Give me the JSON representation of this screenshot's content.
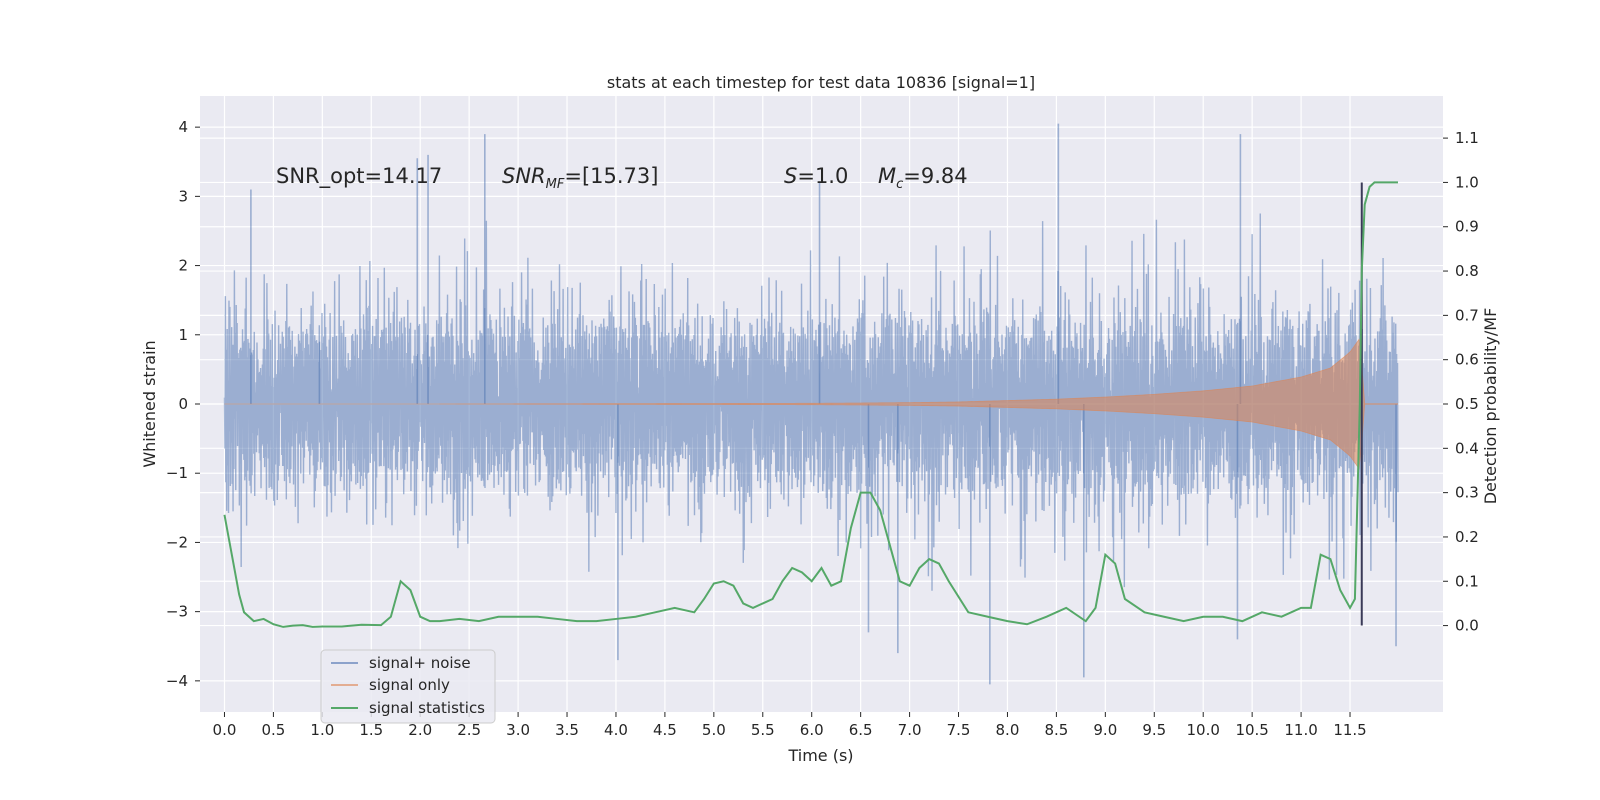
{
  "chart_data": {
    "type": "line",
    "title": "stats at each timestep for test data 10836 [signal=1]",
    "xlabel": "Time (s)",
    "ylabel": "Whitened strain",
    "y2label": "Detection probability/MF",
    "xlim": [
      -0.25,
      12.45
    ],
    "ylim": [
      -4.45,
      4.45
    ],
    "y2lim": [
      -0.195,
      1.195
    ],
    "x_ticks": [
      0.0,
      0.5,
      1.0,
      1.5,
      2.0,
      2.5,
      3.0,
      3.5,
      4.0,
      4.5,
      5.0,
      5.5,
      6.0,
      6.5,
      7.0,
      7.5,
      8.0,
      8.5,
      9.0,
      9.5,
      10.0,
      10.5,
      11.0,
      11.5
    ],
    "x_tick_labels": [
      "0.0",
      "0.5",
      "1.0",
      "1.5",
      "2.0",
      "2.5",
      "3.0",
      "3.5",
      "4.0",
      "4.5",
      "5.0",
      "5.5",
      "6.0",
      "6.5",
      "7.0",
      "7.5",
      "8.0",
      "8.5",
      "9.0",
      "9.5",
      "10.0",
      "10.5",
      "11.0",
      "11.5"
    ],
    "y_ticks": [
      -4,
      -3,
      -2,
      -1,
      0,
      1,
      2,
      3,
      4
    ],
    "y_tick_labels": [
      "−4",
      "−3",
      "−2",
      "−1",
      "0",
      "1",
      "2",
      "3",
      "4"
    ],
    "y2_ticks": [
      0.0,
      0.1,
      0.2,
      0.3,
      0.4,
      0.5,
      0.6,
      0.7,
      0.8,
      0.9,
      1.0,
      1.1
    ],
    "y2_tick_labels": [
      "0.0",
      "0.1",
      "0.2",
      "0.3",
      "0.4",
      "0.5",
      "0.6",
      "0.7",
      "0.8",
      "0.9",
      "1.0",
      "1.1"
    ],
    "grid": true,
    "legend_position": "lower-left",
    "annotations": {
      "snr_opt": "SNR_opt=14.17",
      "snr_mf_main": "SNR",
      "snr_mf_sub": "MF",
      "snr_mf_value": "=[15.73]",
      "s_symbol": "S",
      "s_value": "=1.0",
      "mc_symbol": "M",
      "mc_sub": "c",
      "mc_value": "=9.84"
    },
    "detection_time": 11.62,
    "series": [
      {
        "name": "signal+ noise",
        "color": "#4c72b0",
        "axis": "left",
        "x_range": [
          0.0,
          11.99
        ],
        "envelope_core": 1.3,
        "typical_peak": 2.1,
        "extreme_points": [
          [
            0.27,
            3.1
          ],
          [
            0.97,
            0.9
          ],
          [
            1.97,
            3.55
          ],
          [
            2.08,
            3.6
          ],
          [
            2.66,
            3.9
          ],
          [
            6.08,
            3.2
          ],
          [
            8.52,
            4.05
          ],
          [
            10.38,
            3.9
          ],
          [
            4.02,
            -3.7
          ],
          [
            6.58,
            -3.3
          ],
          [
            6.88,
            -3.6
          ],
          [
            7.82,
            -4.05
          ],
          [
            8.78,
            -3.95
          ],
          [
            10.35,
            -3.4
          ],
          [
            11.97,
            -3.5
          ]
        ]
      },
      {
        "name": "signal only",
        "color": "#dd8452",
        "axis": "left",
        "x": [
          0.0,
          2.0,
          4.0,
          6.0,
          7.0,
          7.5,
          8.0,
          8.5,
          9.0,
          9.5,
          10.0,
          10.5,
          11.0,
          11.3,
          11.5,
          11.6,
          11.65
        ],
        "amplitude": [
          0.0,
          0.0,
          0.005,
          0.01,
          0.02,
          0.03,
          0.05,
          0.07,
          0.1,
          0.14,
          0.19,
          0.26,
          0.39,
          0.52,
          0.75,
          0.95,
          0.0
        ]
      },
      {
        "name": "signal statistics",
        "color": "#55a868",
        "axis": "right",
        "x": [
          0.0,
          0.05,
          0.1,
          0.15,
          0.2,
          0.3,
          0.4,
          0.5,
          0.6,
          0.7,
          0.8,
          0.9,
          1.0,
          1.2,
          1.4,
          1.6,
          1.7,
          1.8,
          1.9,
          2.0,
          2.1,
          2.2,
          2.4,
          2.6,
          2.8,
          3.0,
          3.2,
          3.4,
          3.6,
          3.8,
          4.0,
          4.2,
          4.4,
          4.6,
          4.8,
          4.9,
          5.0,
          5.1,
          5.2,
          5.3,
          5.4,
          5.5,
          5.6,
          5.7,
          5.8,
          5.9,
          6.0,
          6.1,
          6.2,
          6.3,
          6.4,
          6.5,
          6.6,
          6.7,
          6.8,
          6.9,
          7.0,
          7.1,
          7.2,
          7.3,
          7.4,
          7.6,
          7.8,
          8.0,
          8.2,
          8.4,
          8.6,
          8.8,
          8.9,
          9.0,
          9.1,
          9.2,
          9.4,
          9.6,
          9.8,
          10.0,
          10.2,
          10.4,
          10.6,
          10.8,
          11.0,
          11.1,
          11.2,
          11.3,
          11.4,
          11.5,
          11.55,
          11.6,
          11.62,
          11.65,
          11.7,
          11.75,
          11.8,
          11.9,
          11.99
        ],
        "values": [
          0.25,
          0.19,
          0.13,
          0.07,
          0.03,
          0.01,
          0.015,
          0.003,
          -0.003,
          0.0,
          0.001,
          -0.003,
          -0.002,
          -0.002,
          0.002,
          0.001,
          0.02,
          0.1,
          0.08,
          0.02,
          0.01,
          0.01,
          0.015,
          0.01,
          0.02,
          0.02,
          0.02,
          0.015,
          0.01,
          0.01,
          0.015,
          0.02,
          0.03,
          0.04,
          0.03,
          0.06,
          0.095,
          0.1,
          0.09,
          0.05,
          0.04,
          0.05,
          0.06,
          0.1,
          0.13,
          0.12,
          0.1,
          0.13,
          0.09,
          0.1,
          0.22,
          0.3,
          0.3,
          0.26,
          0.18,
          0.1,
          0.09,
          0.13,
          0.15,
          0.14,
          0.1,
          0.03,
          0.02,
          0.01,
          0.003,
          0.02,
          0.04,
          0.01,
          0.04,
          0.16,
          0.14,
          0.06,
          0.03,
          0.02,
          0.01,
          0.02,
          0.02,
          0.01,
          0.03,
          0.02,
          0.04,
          0.04,
          0.16,
          0.15,
          0.08,
          0.04,
          0.06,
          0.5,
          0.8,
          0.95,
          0.99,
          1.0,
          1.0,
          1.0,
          1.0
        ]
      }
    ]
  }
}
